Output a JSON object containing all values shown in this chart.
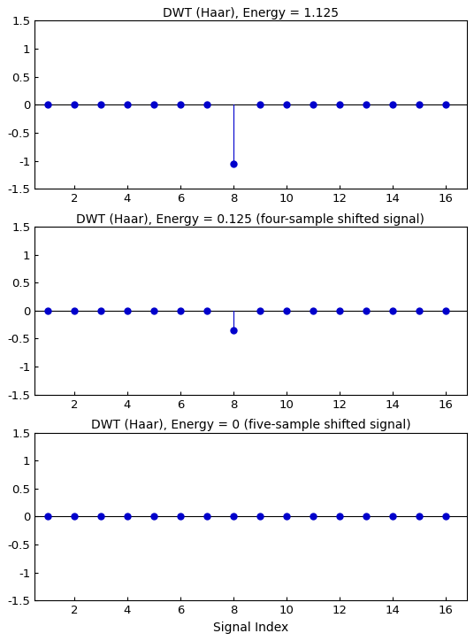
{
  "titles": [
    "DWT (Haar), Energy = 1.125",
    "DWT (Haar), Energy = 0.125 (four-sample shifted signal)",
    "DWT (Haar), Energy = 0 (five-sample shifted signal)"
  ],
  "xlabel": "Signal Index",
  "n_points": 16,
  "ylim": [
    -1.5,
    1.5
  ],
  "yticks": [
    -1.5,
    -1.0,
    -0.5,
    0,
    0.5,
    1.0,
    1.5
  ],
  "ytick_labels": [
    "-1.5",
    "-1",
    "-0.5",
    "0",
    "0.5",
    "1",
    "1.5"
  ],
  "xticks": [
    2,
    4,
    6,
    8,
    10,
    12,
    14,
    16
  ],
  "dot_color": "#0000CC",
  "line_color": "#0000CC",
  "bg_color": "#ffffff",
  "subplot1_values": [
    0,
    0,
    0,
    0,
    0,
    0,
    0,
    -1.06066,
    0,
    0,
    0,
    0,
    0,
    0,
    0,
    0
  ],
  "subplot2_values": [
    0,
    0,
    0,
    0,
    0,
    0,
    0,
    -0.35355,
    0,
    0,
    0,
    0,
    0,
    0,
    0,
    0
  ],
  "subplot3_values": [
    0,
    0,
    0,
    0,
    0,
    0,
    0,
    0,
    0,
    0,
    0,
    0,
    0,
    0,
    0,
    0
  ],
  "title_fontsize": 10,
  "label_fontsize": 10,
  "tick_fontsize": 9.5,
  "figsize": [
    5.36,
    7.24
  ],
  "dpi": 100
}
